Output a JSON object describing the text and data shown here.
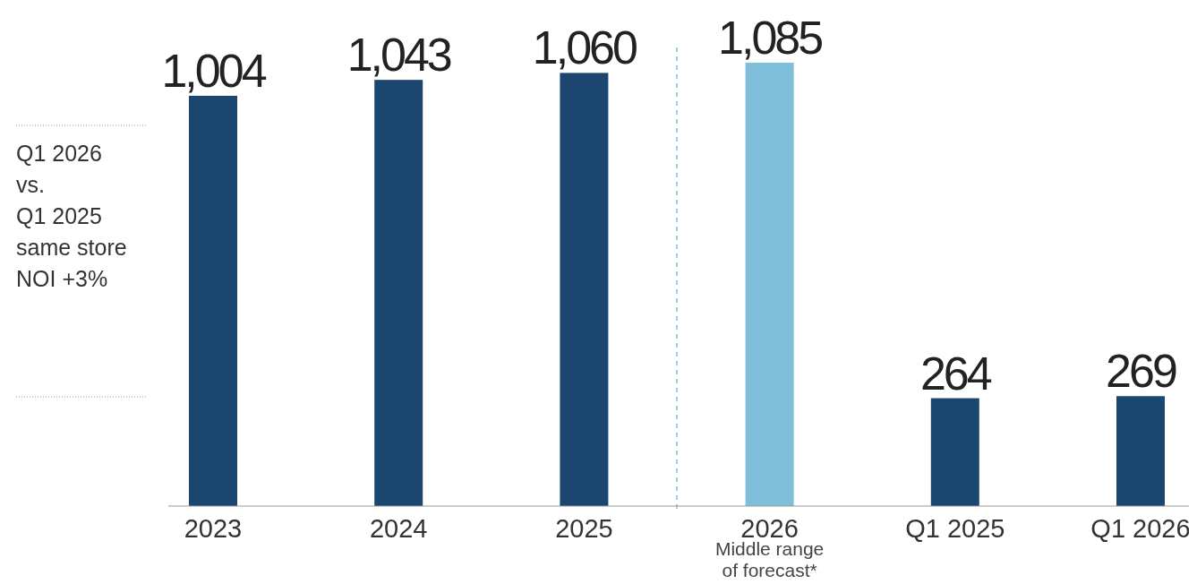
{
  "chart_data": {
    "type": "bar",
    "categories": [
      "2023",
      "2024",
      "2025",
      "2026",
      "Q1 2025",
      "Q1 2026"
    ],
    "values": [
      1004,
      1043,
      1060,
      1085,
      264,
      269
    ],
    "colors": [
      "#1a4670",
      "#1a4670",
      "#1a4670",
      "#80bfda",
      "#1a4670",
      "#1a4670"
    ],
    "value_labels": [
      "1,004",
      "1,043",
      "1,060",
      "1,085",
      "264",
      "269"
    ],
    "annotations": [
      "Q1 2026\nvs.\nQ1 2025\nsame store\nNOI +3%",
      "Middle range\nof forecast*"
    ]
  }
}
